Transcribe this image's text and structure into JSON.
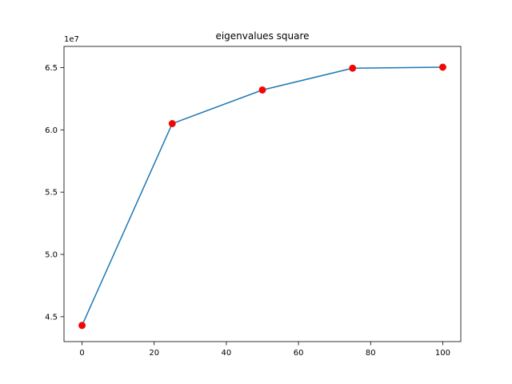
{
  "chart_data": {
    "type": "line",
    "title": "eigenvalues square",
    "xlabel": "",
    "ylabel": "",
    "y_offset_label": "1e7",
    "xlim": [
      -5,
      105
    ],
    "ylim": [
      4.3,
      6.67
    ],
    "grid": false,
    "legend": "none",
    "x_ticks": [
      0,
      20,
      40,
      60,
      80,
      100
    ],
    "x_tick_labels": [
      "0",
      "20",
      "40",
      "60",
      "80",
      "100"
    ],
    "y_ticks": [
      4.5,
      5.0,
      5.5,
      6.0,
      6.5
    ],
    "y_tick_labels": [
      "4.5",
      "5.0",
      "5.5",
      "6.0",
      "6.5"
    ],
    "line_color": "#1f77b4",
    "marker_color": "#ff0000",
    "series": [
      {
        "x": [
          0,
          25,
          50,
          75,
          100
        ],
        "values": [
          4.43,
          6.05,
          6.32,
          6.495,
          6.503
        ]
      }
    ]
  }
}
